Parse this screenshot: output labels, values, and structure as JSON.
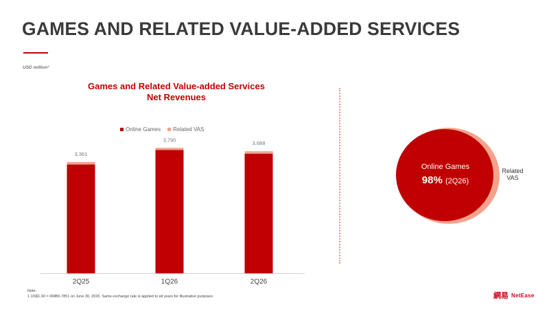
{
  "page": {
    "title": "GAMES AND RELATED VALUE-ADDED SERVICES",
    "unit_note": "USD million¹"
  },
  "chart_data": [
    {
      "type": "bar",
      "stacked": true,
      "title_lines": [
        "Games and Related Value-added Services",
        "Net Revenues"
      ],
      "categories": [
        "2Q25",
        "1Q26",
        "2Q26"
      ],
      "totals": [
        "3,361",
        "3,790",
        "3,688"
      ],
      "series": [
        {
          "name": "Online Games",
          "color": "#c00000",
          "values": [
            3287,
            3725,
            3615
          ]
        },
        {
          "name": "Related VAS",
          "color": "#f4a28c",
          "values": [
            74,
            65,
            73
          ]
        }
      ],
      "ylim": [
        0,
        3900
      ],
      "legend_position": "top",
      "grid": false
    },
    {
      "type": "pie",
      "slices": [
        {
          "name": "Online Games",
          "value": 98,
          "color": "#c00000"
        },
        {
          "name": "Related VAS",
          "value": 2,
          "color": "#f4a28c"
        }
      ],
      "main_label": "Online Games",
      "main_pct": "98%",
      "period": "(2Q26)",
      "side_label_lines": [
        "Related",
        "VAS"
      ]
    }
  ],
  "footer": {
    "note_title": "Note:",
    "note_line": "1     US$1.00 =  RMB6.7851 on June 30, 2026. Same exchange rate is applied to all years for illustrative purposes"
  },
  "logo": {
    "mark": "網易",
    "text": "NetEase"
  }
}
